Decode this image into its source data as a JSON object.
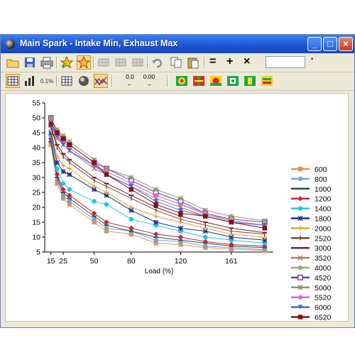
{
  "window": {
    "title": "Main Spark - Intake Min, Exhaust Max",
    "controls": {
      "minimize": "minimize",
      "maximize": "maximize",
      "close": "close"
    }
  },
  "toolbar1": {
    "buttons": [
      "open-folder-icon",
      "save-icon",
      "print-icon",
      "star-icon",
      "star-pressed-icon",
      "grid-a-icon",
      "grid-b-icon",
      "grid-c-icon",
      "undo-icon",
      "copy-icon",
      "paste-icon"
    ],
    "operators": [
      "=",
      "+",
      "×"
    ],
    "value_field": "",
    "value_marker": "•"
  },
  "toolbar2": {
    "buttons": [
      "table-view-icon",
      "column-chart-icon",
      "number-format-icon",
      "grid-view-icon",
      "3d-view-icon",
      "graph-view-icon"
    ],
    "decimal_buttons": [
      {
        "label": "0.0",
        "arrow": "←"
      },
      {
        "label": "0.00",
        "arrow": "→"
      }
    ],
    "color_buttons": [
      "smooth-surface-icon",
      "interpolate-icon",
      "fill-icon",
      "target-icon",
      "split-view-icon",
      "range-icon"
    ]
  },
  "chart_data": {
    "type": "line",
    "xlabel": "Load (%)",
    "ylabel": "",
    "xlim": [
      10,
      195
    ],
    "ylim": [
      5,
      55
    ],
    "xticks": [
      15,
      25,
      50,
      80,
      120,
      161
    ],
    "yticks": [
      5,
      10,
      15,
      20,
      25,
      30,
      35,
      40,
      45,
      50,
      55
    ],
    "x": [
      15,
      20,
      25,
      30,
      50,
      60,
      80,
      100,
      120,
      140,
      161,
      188
    ],
    "legend": "right",
    "series": [
      {
        "name": "600",
        "color": "#e8915a",
        "marker": "square",
        "values": [
          41,
          28,
          23,
          21,
          15,
          12,
          11,
          8,
          7.5,
          6.5,
          6,
          5.5
        ]
      },
      {
        "name": "800",
        "color": "#7e9ed6",
        "marker": "circle",
        "values": [
          42,
          29,
          24,
          22,
          16,
          13,
          12,
          9,
          8.5,
          7,
          6.5,
          5.8
        ]
      },
      {
        "name": "1000",
        "color": "#1e5c34",
        "marker": "dash",
        "values": [
          42,
          30,
          25,
          23,
          17,
          14,
          12,
          10,
          9,
          8,
          7,
          6.5
        ]
      },
      {
        "name": "1200",
        "color": "#c0243a",
        "marker": "diamond",
        "values": [
          43,
          31,
          26,
          24,
          18,
          15,
          13,
          11,
          10,
          8.5,
          7.5,
          7
        ]
      },
      {
        "name": "1400",
        "color": "#1ec6e3",
        "marker": "circle",
        "values": [
          44,
          33,
          28,
          26,
          22,
          21,
          16,
          14,
          12,
          10,
          9,
          8
        ]
      },
      {
        "name": "1800",
        "color": "#1e2e8e",
        "marker": "star",
        "values": [
          45,
          35,
          32,
          31,
          26,
          24,
          19,
          15,
          13,
          12,
          10,
          9
        ]
      },
      {
        "name": "2000",
        "color": "#e3a43a",
        "marker": "plus",
        "values": [
          46,
          37,
          34,
          33,
          27,
          25,
          20,
          17,
          15,
          13,
          11,
          10
        ]
      },
      {
        "name": "2520",
        "color": "#7a4a3a",
        "marker": "tick",
        "values": [
          47,
          40,
          37,
          35,
          29,
          27,
          23,
          19,
          16,
          14,
          12,
          11
        ]
      },
      {
        "name": "3000",
        "color": "#7b1e2e",
        "marker": "dash",
        "values": [
          47,
          41,
          38,
          36,
          30,
          28,
          24,
          20,
          17,
          15,
          13,
          11.5
        ]
      },
      {
        "name": "3520",
        "color": "#b07a6a",
        "marker": "x",
        "values": [
          48,
          43,
          41,
          39,
          33,
          31,
          27,
          23,
          20,
          17,
          15,
          13
        ]
      },
      {
        "name": "4000",
        "color": "#8eb07e",
        "marker": "circle",
        "values": [
          49,
          44,
          42,
          40,
          34,
          32,
          28,
          24,
          21,
          17.5,
          15.5,
          14
        ]
      },
      {
        "name": "4520",
        "color": "#7a3aa8",
        "marker": "square-o",
        "values": [
          50,
          45,
          43,
          41,
          35,
          33,
          29,
          25,
          22,
          18,
          16,
          15
        ]
      },
      {
        "name": "5000",
        "color": "#8a9a6a",
        "marker": "star",
        "values": [
          50,
          46,
          44,
          42,
          36,
          33,
          30,
          26,
          23,
          19,
          17,
          15.5
        ]
      },
      {
        "name": "5520",
        "color": "#e06ad0",
        "marker": "circle",
        "values": [
          48,
          44,
          42,
          40,
          34,
          32,
          28,
          24,
          21,
          18,
          15.5,
          14
        ]
      },
      {
        "name": "6000",
        "color": "#3a6ad8",
        "marker": "triangle",
        "values": [
          47,
          44,
          41,
          39,
          34,
          31,
          27,
          22,
          19,
          17,
          15,
          14
        ]
      },
      {
        "name": "6520",
        "color": "#8a1010",
        "marker": "square",
        "values": [
          48,
          45,
          43,
          41,
          35,
          31,
          26,
          21,
          18,
          17,
          15,
          13
        ]
      }
    ]
  }
}
